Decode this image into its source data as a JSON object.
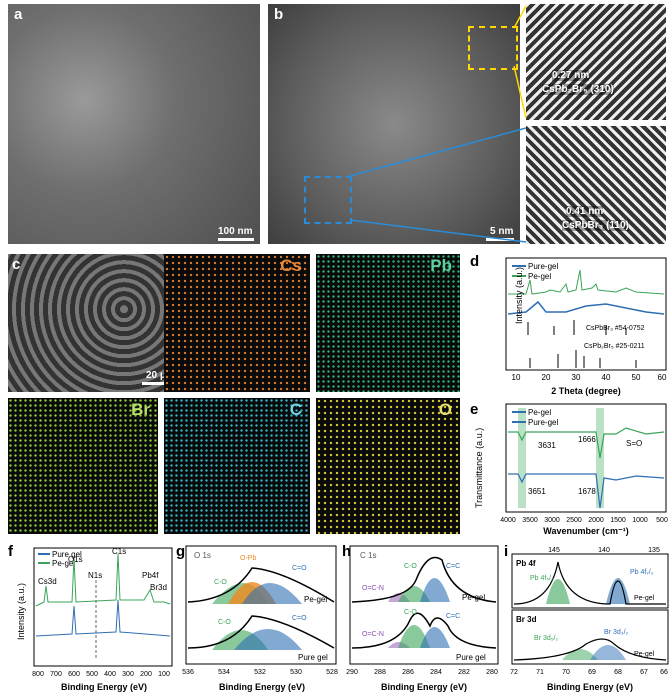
{
  "panels": {
    "a": {
      "label": "a",
      "scale": "100 nm"
    },
    "b": {
      "label": "b",
      "scale": "5 nm",
      "inset_top": {
        "spacing": "0.27 nm",
        "phase": "CsPb₂Br₅ (310)"
      },
      "inset_bottom": {
        "spacing": "0.41 nm",
        "phase": "CsPbBr₃ (110)"
      }
    },
    "c": {
      "label": "c",
      "scale": "20 μm",
      "elements": [
        "Cs",
        "Pb",
        "Br",
        "C",
        "O"
      ]
    },
    "d": {
      "label": "d",
      "legend": [
        "Pure-gel",
        "Pe-gel"
      ],
      "refs": [
        "CsPbBr₃ #54-0752",
        "CsPb₂Br₅ #25-0211"
      ],
      "xlabel": "2 Theta (degree)",
      "ylabel": "Intensity (a.u.)",
      "xticks": [
        "10",
        "20",
        "30",
        "40",
        "50",
        "60"
      ]
    },
    "e": {
      "label": "e",
      "legend": [
        "Pe-gel",
        "Pure-gel"
      ],
      "annotations": [
        "3631",
        "1666",
        "S=O",
        "3651",
        "1678"
      ],
      "xlabel": "Wavenumber (cm⁻¹)",
      "ylabel": "Transmittance (a.u.)",
      "xticks": [
        "4000",
        "3500",
        "3000",
        "2500",
        "2000",
        "1500",
        "1000",
        "500"
      ]
    },
    "f": {
      "label": "f",
      "legend": [
        "Pure gel",
        "Pe-gel"
      ],
      "peaks": [
        "Cs3d",
        "O1s",
        "N1s",
        "C1s",
        "Pb4f",
        "Br3d"
      ],
      "xlabel": "Binding Energy (eV)",
      "ylabel": "Intensity (a.u.)",
      "xticks": [
        "800",
        "700",
        "600",
        "500",
        "400",
        "300",
        "200",
        "100"
      ]
    },
    "g": {
      "label": "g",
      "title": "O 1s",
      "peaks_top": [
        "C-O",
        "O-Pb",
        "C=O"
      ],
      "peaks_bottom": [
        "C-O",
        "C=O"
      ],
      "samples": [
        "Pe-gel",
        "Pure gel"
      ],
      "xlabel": "Binding Energy (eV)",
      "xticks": [
        "536",
        "534",
        "532",
        "530",
        "528"
      ]
    },
    "h": {
      "label": "h",
      "title": "C 1s",
      "peaks_top": [
        "C-O",
        "O=C-N",
        "C=C"
      ],
      "peaks_bottom": [
        "C-O",
        "O=C-N",
        "C=C"
      ],
      "samples": [
        "Pe-gel",
        "Pure gel"
      ],
      "xlabel": "Binding Energy (eV)",
      "xticks": [
        "290",
        "288",
        "286",
        "284",
        "282",
        "280"
      ]
    },
    "i": {
      "label": "i",
      "title_top": "Pb 4f",
      "title_bottom": "Br 3d",
      "peaks_top": [
        "Pb 4f₅/₂",
        "Pb 4f₇/₂"
      ],
      "peaks_bottom": [
        "Br 3d₅/₂",
        "Br 3d₃/₂"
      ],
      "sample": "Pe-gel",
      "sample2": "Pe-gel",
      "xticks_top": [
        "145",
        "140",
        "135"
      ],
      "xticks": [
        "72",
        "71",
        "70",
        "69",
        "68",
        "67",
        "66"
      ],
      "xlabel": "Binding Energy (eV)"
    }
  },
  "colors": {
    "green": "#3aa55a",
    "blue": "#2e6fb3",
    "orange": "#f08a1f",
    "purple": "#8a4fb0"
  }
}
